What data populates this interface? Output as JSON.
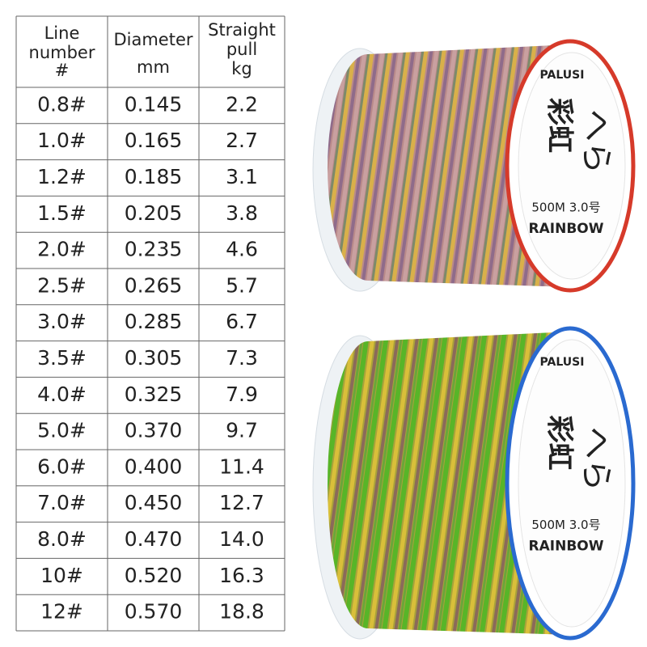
{
  "table": {
    "header": [
      [
        "Line",
        "number",
        "#"
      ],
      [
        "Diameter",
        "mm"
      ],
      [
        "Straight",
        "pull",
        "kg"
      ]
    ],
    "rows": [
      [
        "0.8#",
        "0.145",
        "2.2"
      ],
      [
        "1.0#",
        "0.165",
        "2.7"
      ],
      [
        "1.2#",
        "0.185",
        "3.1"
      ],
      [
        "1.5#",
        "0.205",
        "3.8"
      ],
      [
        "2.0#",
        "0.235",
        "4.6"
      ],
      [
        "2.5#",
        "0.265",
        "5.7"
      ],
      [
        "3.0#",
        "0.285",
        "6.7"
      ],
      [
        "3.5#",
        "0.305",
        "7.3"
      ],
      [
        "4.0#",
        "0.325",
        "7.9"
      ],
      [
        "5.0#",
        "0.370",
        "9.7"
      ],
      [
        "6.0#",
        "0.400",
        "11.4"
      ],
      [
        "7.0#",
        "0.450",
        "12.7"
      ],
      [
        "8.0#",
        "0.470",
        "14.0"
      ],
      [
        "10#",
        "0.520",
        "16.3"
      ],
      [
        "12#",
        "0.570",
        "18.8"
      ]
    ]
  },
  "spools": [
    {
      "brand": "PALUSI",
      "name": "彩虹",
      "kana": "へら",
      "spec": "500M 3.0号",
      "label": "RAINBOW"
    },
    {
      "brand": "PALUSI",
      "name": "彩虹",
      "kana": "へら",
      "spec": "500M 3.0号",
      "label": "RAINBOW"
    }
  ]
}
